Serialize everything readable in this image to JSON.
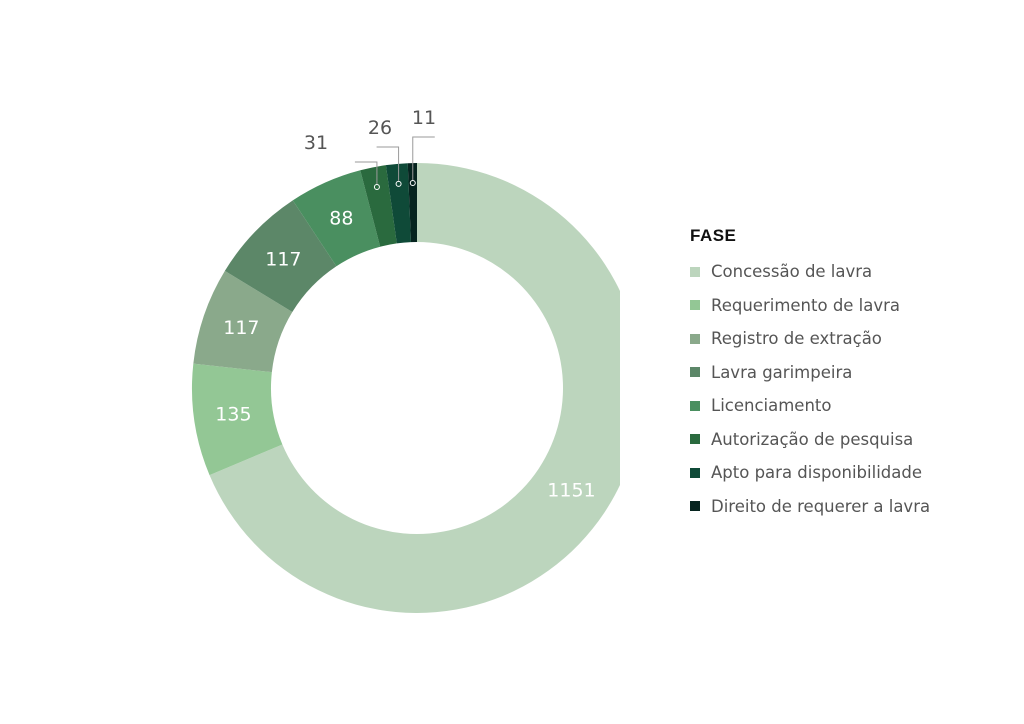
{
  "chart_data": {
    "type": "pie",
    "donut": true,
    "legend_title": "FASE",
    "legend_position": "right",
    "categories": [
      "Concessão de lavra",
      "Requerimento de lavra",
      "Registro de extração",
      "Lavra garimpeira",
      "Licenciamento",
      "Autorização de pesquisa",
      "Apto para disponibilidade",
      "Direito de requerer a lavra"
    ],
    "values": [
      1151,
      135,
      117,
      117,
      88,
      31,
      26,
      11
    ],
    "labels": [
      "1151",
      "135",
      "117",
      "117",
      "88",
      "31",
      "26",
      "11"
    ],
    "colors": [
      "#bcd5bd",
      "#93c795",
      "#8aa98b",
      "#5c8768",
      "#4a8f60",
      "#2a6a3e",
      "#0f4a38",
      "#06241f"
    ]
  }
}
